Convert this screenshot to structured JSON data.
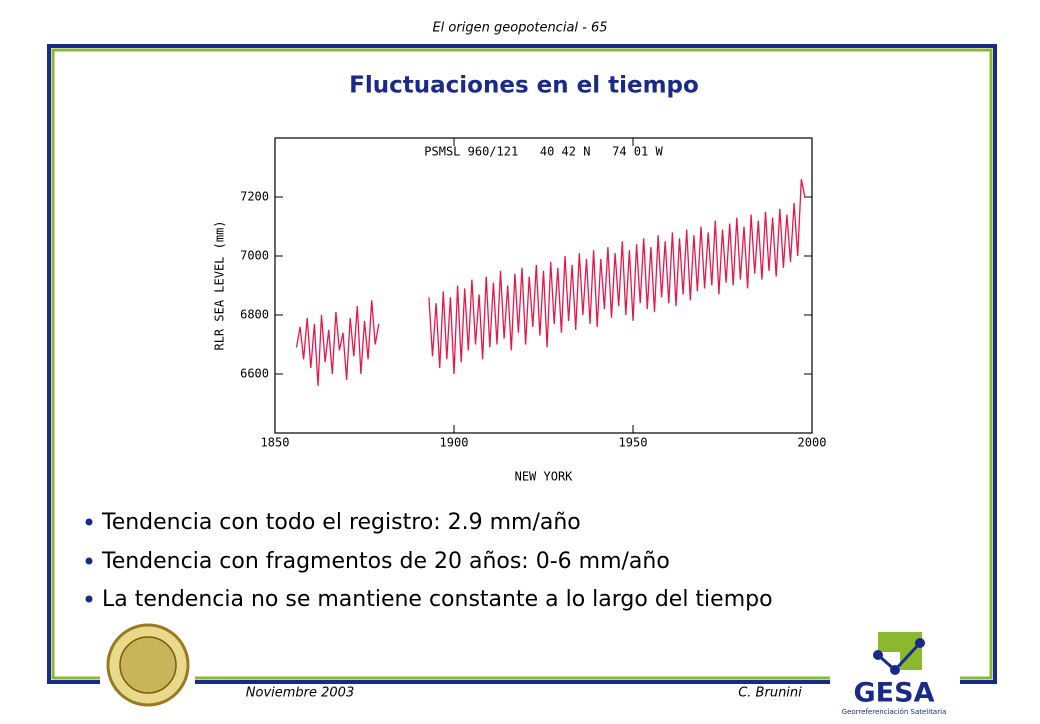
{
  "header": "El origen geopotencial - 65",
  "title": "Fluctuaciones en el tiempo",
  "bullets": [
    "Tendencia con todo el registro: 2.9 mm/año",
    "Tendencia con fragmentos de 20 años: 0-6 mm/año",
    "La tendencia no se mantiene constante a lo largo del tiempo"
  ],
  "footer": {
    "date": "Noviembre 2003",
    "author": "C. Brunini"
  },
  "logo": {
    "name": "GESA",
    "subtitle": "Georreferenciación Satelitaria"
  },
  "chart_data": {
    "type": "line",
    "title": "PSMSL 960/121   40 42 N   74 01 W",
    "y_label": "RLR SEA LEVEL (mm)",
    "x_label": "NEW YORK",
    "xlim": [
      1850,
      2000
    ],
    "xticks": [
      1850,
      1900,
      1950,
      2000
    ],
    "ylim": [
      6400,
      7400
    ],
    "yticks": [
      6600,
      6800,
      7000,
      7200
    ],
    "x": [
      1856,
      1857,
      1858,
      1859,
      1860,
      1861,
      1862,
      1863,
      1864,
      1865,
      1866,
      1867,
      1868,
      1869,
      1870,
      1871,
      1872,
      1873,
      1874,
      1875,
      1876,
      1877,
      1878,
      1879,
      1886,
      1893,
      1894,
      1895,
      1896,
      1897,
      1898,
      1899,
      1900,
      1901,
      1902,
      1903,
      1904,
      1905,
      1906,
      1907,
      1908,
      1909,
      1910,
      1911,
      1912,
      1913,
      1914,
      1915,
      1916,
      1917,
      1918,
      1919,
      1920,
      1921,
      1922,
      1923,
      1924,
      1925,
      1926,
      1927,
      1928,
      1929,
      1930,
      1931,
      1932,
      1933,
      1934,
      1935,
      1936,
      1937,
      1938,
      1939,
      1940,
      1941,
      1942,
      1943,
      1944,
      1945,
      1946,
      1947,
      1948,
      1949,
      1950,
      1951,
      1952,
      1953,
      1954,
      1955,
      1956,
      1957,
      1958,
      1959,
      1960,
      1961,
      1962,
      1963,
      1964,
      1965,
      1966,
      1967,
      1968,
      1969,
      1970,
      1971,
      1972,
      1973,
      1974,
      1975,
      1976,
      1977,
      1978,
      1979,
      1980,
      1981,
      1982,
      1983,
      1984,
      1985,
      1986,
      1987,
      1988,
      1989,
      1990,
      1991,
      1992,
      1993,
      1994,
      1995,
      1996,
      1997,
      1998
    ],
    "series": [
      {
        "name": "New York",
        "color": "#e8174a",
        "values": [
          6690,
          6760,
          6650,
          6790,
          6620,
          6770,
          6560,
          6800,
          6640,
          6750,
          6600,
          6810,
          6680,
          6740,
          6580,
          6790,
          6660,
          6830,
          6600,
          6780,
          6650,
          6850,
          6700,
          6770,
          null,
          6860,
          6660,
          6840,
          6620,
          6880,
          6650,
          6860,
          6600,
          6900,
          6640,
          6890,
          6680,
          6920,
          6700,
          6870,
          6650,
          6930,
          6690,
          6910,
          6700,
          6950,
          6720,
          6900,
          6680,
          6940,
          6740,
          6960,
          6700,
          6930,
          6760,
          6970,
          6730,
          6950,
          6690,
          6980,
          6770,
          6960,
          6740,
          7000,
          6780,
          6970,
          6750,
          7010,
          6800,
          6990,
          6770,
          7020,
          6760,
          6990,
          6820,
          7030,
          6790,
          7010,
          6830,
          7050,
          6800,
          7020,
          6780,
          7040,
          6840,
          7060,
          6820,
          7030,
          6810,
          7070,
          6860,
          7050,
          6840,
          7080,
          6830,
          7060,
          6870,
          7090,
          6850,
          7070,
          6880,
          7100,
          6890,
          7080,
          6900,
          7120,
          6870,
          7090,
          6910,
          7110,
          6900,
          7130,
          6920,
          7100,
          6890,
          7140,
          6940,
          7120,
          6920,
          7150,
          6950,
          7130,
          6930,
          7160,
          6960,
          7140,
          6980,
          7180,
          7000,
          7260,
          7200
        ]
      }
    ]
  }
}
